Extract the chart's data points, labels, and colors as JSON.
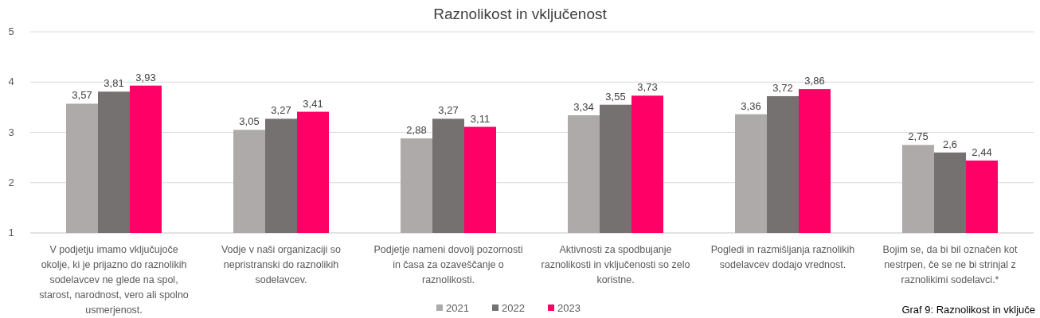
{
  "chart_data": {
    "type": "bar",
    "title": "Raznolikost in vključenost",
    "categories": [
      "V podjetju imamo vključujoče okolje, ki je prijazno do raznolikih sodelavcev ne glede na spol, starost, narodnost, vero ali spolno usmerjenost.",
      "Vodje v naši organizaciji so nepristranski do raznolikih sodelavcev.",
      "Podjetje nameni dovolj pozornosti in časa za ozaveščanje o raznolikosti.",
      "Aktivnosti za spodbujanje raznolikosti in vključenosti so zelo koristne.",
      "Pogledi in razmišljanja raznolikih sodelavcev dodajo vrednost.",
      "Bojim se, da bi bil označen kot nestrpen, če se ne bi strinjal z raznolikimi sodelavci.*"
    ],
    "series": [
      {
        "name": "2021",
        "color": "#aeaaaa",
        "values": [
          3.57,
          3.05,
          2.88,
          3.34,
          3.36,
          2.75
        ],
        "value_labels": [
          "3,57",
          "3,05",
          "2,88",
          "3,34",
          "3,36",
          "2,75"
        ]
      },
      {
        "name": "2022",
        "color": "#767171",
        "values": [
          3.81,
          3.27,
          3.27,
          3.55,
          3.72,
          2.6
        ],
        "value_labels": [
          "3,81",
          "3,27",
          "3,27",
          "3,55",
          "3,72",
          "2,6"
        ]
      },
      {
        "name": "2023",
        "color": "#ff0066",
        "values": [
          3.93,
          3.41,
          3.11,
          3.73,
          3.86,
          2.44
        ],
        "value_labels": [
          "3,93",
          "3,41",
          "3,11",
          "3,73",
          "3,86",
          "2,44"
        ]
      }
    ],
    "ylim": [
      1,
      5
    ],
    "yticks": [
      1,
      2,
      3,
      4,
      5
    ],
    "grid": "y",
    "legend": "bottom",
    "annotations": [
      "Graf 9: Raznolikost in vključe"
    ]
  }
}
